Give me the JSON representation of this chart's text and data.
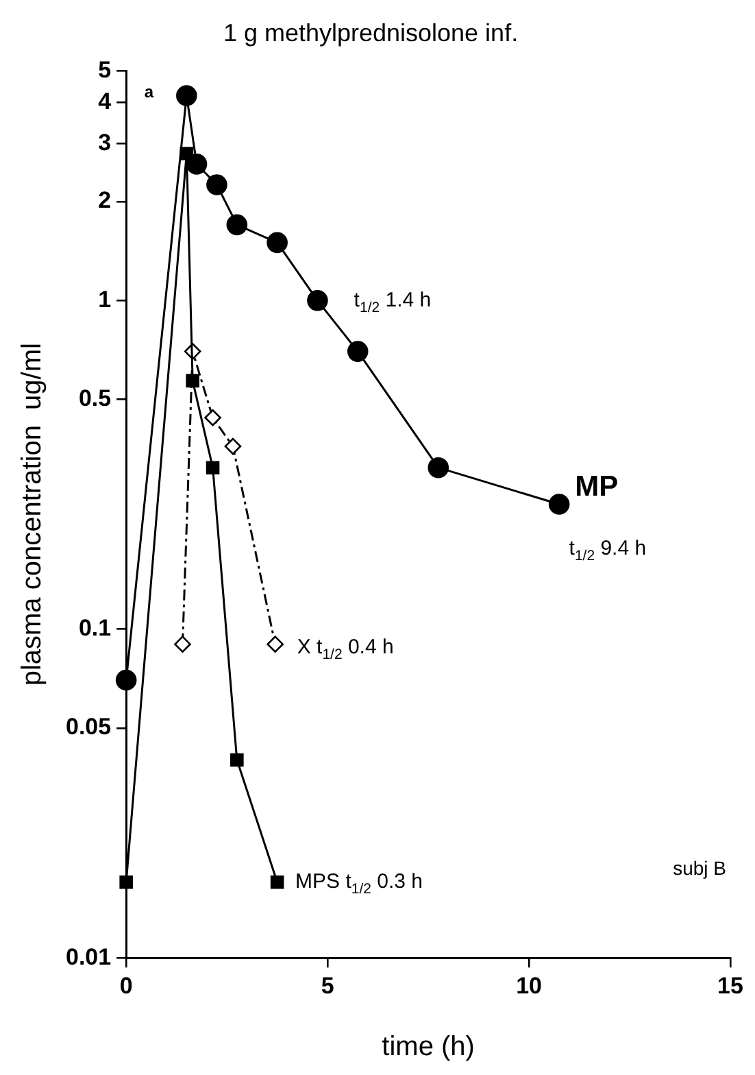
{
  "chart_data": {
    "type": "line",
    "title": "1 g methylprednisolone inf.",
    "xlabel": "time (h)",
    "ylabel": "plasma concentration  ug/ml",
    "log": "y",
    "grid": false,
    "legend": false,
    "xlim": [
      0,
      15
    ],
    "xticks": [
      0,
      5,
      10,
      15
    ],
    "ylim": [
      0.01,
      5
    ],
    "yticks": [
      0.01,
      0.05,
      0.1,
      0.5,
      1,
      2,
      3,
      4,
      5
    ],
    "series": [
      {
        "color": "#000000",
        "marker": "circle",
        "line_style": "solid",
        "x": [
          0,
          1.5,
          1.75,
          2.25,
          2.75,
          3.75,
          4.75,
          5.75,
          7.75,
          10.75
        ],
        "values": [
          0.07,
          4.2,
          2.6,
          2.25,
          1.7,
          1.5,
          1.0,
          0.7,
          0.31,
          0.24
        ]
      },
      {
        "color": "#000000",
        "marker": "square",
        "line_style": "solid",
        "x": [
          0,
          1.5,
          1.65,
          2.15,
          2.75,
          3.75
        ],
        "values": [
          0.017,
          2.8,
          0.57,
          0.31,
          0.04,
          0.017
        ]
      },
      {
        "color": "#000000",
        "marker": "diamond",
        "line_style": "dashed",
        "x": [
          1.4,
          1.65,
          2.15,
          2.65,
          3.7
        ],
        "values": [
          0.09,
          0.7,
          0.44,
          0.36,
          0.09
        ]
      }
    ],
    "annotations": [
      "a",
      "subj B",
      "t$_{1/2}$ 1.4 h",
      "MP",
      "t$_{1/2}$ 9.4 h",
      "X t$_{1/2}$ 0.4 h",
      "MPS t$_{1/2}$ 0.3 h"
    ]
  }
}
